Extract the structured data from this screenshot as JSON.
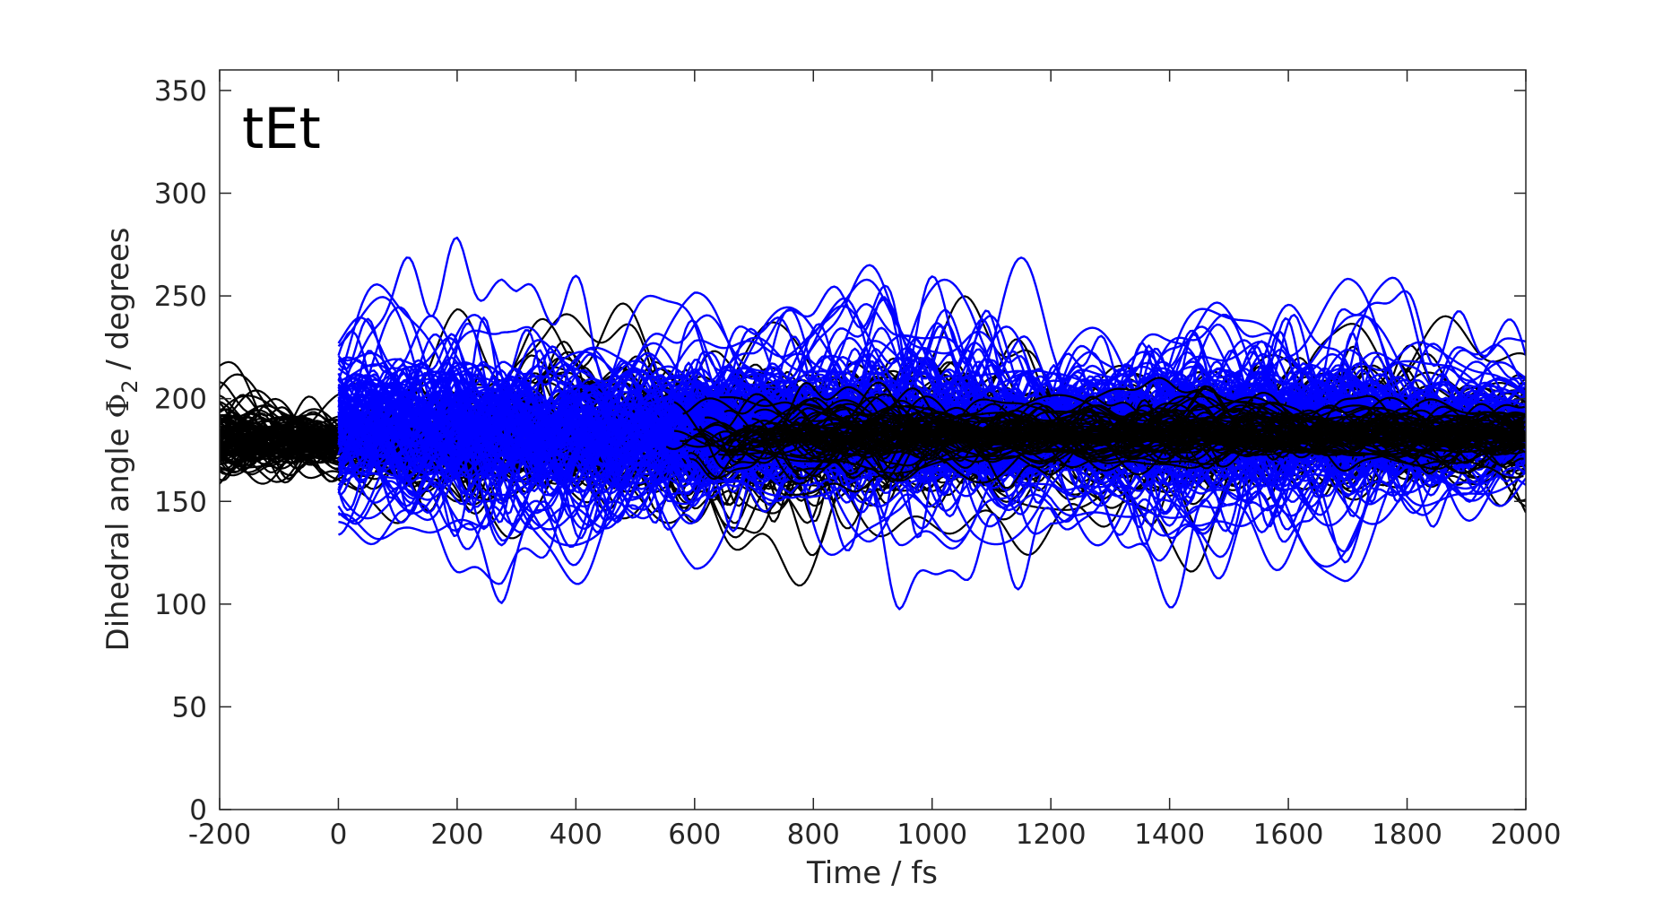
{
  "chart_data": {
    "type": "line",
    "panel_label": "tEt",
    "xlabel": "Time / fs",
    "ylabel": "Dihedral angle Φ₂ / degrees",
    "ylabel_parts": {
      "prefix": "Dihedral angle ",
      "symbol": "Φ",
      "subscript": "2",
      "suffix": " / degrees"
    },
    "xlim": [
      -200,
      2000
    ],
    "ylim": [
      0,
      360
    ],
    "xticks": [
      -200,
      0,
      200,
      400,
      600,
      800,
      1000,
      1200,
      1400,
      1600,
      1800,
      2000
    ],
    "xtick_labels": [
      "-200",
      "0",
      "200",
      "400",
      "600",
      "800",
      "1000",
      "1200",
      "1400",
      "1600",
      "1800",
      "2000"
    ],
    "yticks": [
      0,
      50,
      100,
      150,
      200,
      250,
      300,
      350
    ],
    "ytick_labels": [
      "0",
      "50",
      "100",
      "150",
      "200",
      "250",
      "300",
      "350"
    ],
    "grid": false,
    "legend": "none",
    "colors": {
      "ground_state_trajectories": "#000000",
      "excited_state_trajectories": "#0000ff",
      "axes": "#262626"
    },
    "series": [
      {
        "color": "#000000",
        "description_of_envelope": "ground-state trajectories spanning the full time range",
        "x": [
          -200,
          0,
          200,
          400,
          600,
          800,
          1000,
          1200,
          1400,
          1600,
          1800,
          2000
        ],
        "y_mean": [
          180,
          180,
          180,
          182,
          182,
          182,
          182,
          182,
          183,
          183,
          183,
          183
        ],
        "y_min": [
          135,
          150,
          120,
          115,
          105,
          105,
          110,
          120,
          110,
          120,
          125,
          130
        ],
        "y_max": [
          225,
          228,
          255,
          260,
          265,
          255,
          250,
          240,
          245,
          240,
          240,
          245
        ]
      },
      {
        "color": "#0000ff",
        "description_of_envelope": "excited-state trajectories starting at t = 0",
        "x": [
          0,
          100,
          200,
          300,
          400,
          500,
          600,
          700,
          800,
          900,
          1000,
          1200,
          1400,
          1600,
          1800,
          2000
        ],
        "y_mean": [
          185,
          188,
          188,
          186,
          184,
          184,
          185,
          186,
          186,
          187,
          186,
          186,
          186,
          186,
          186,
          186
        ],
        "y_min": [
          105,
          105,
          80,
          110,
          115,
          120,
          110,
          120,
          120,
          110,
          97,
          130,
          105,
          93,
          125,
          145
        ],
        "y_max": [
          255,
          260,
          270,
          270,
          270,
          275,
          286,
          270,
          265,
          272,
          265,
          262,
          265,
          262,
          265,
          265
        ]
      }
    ]
  }
}
